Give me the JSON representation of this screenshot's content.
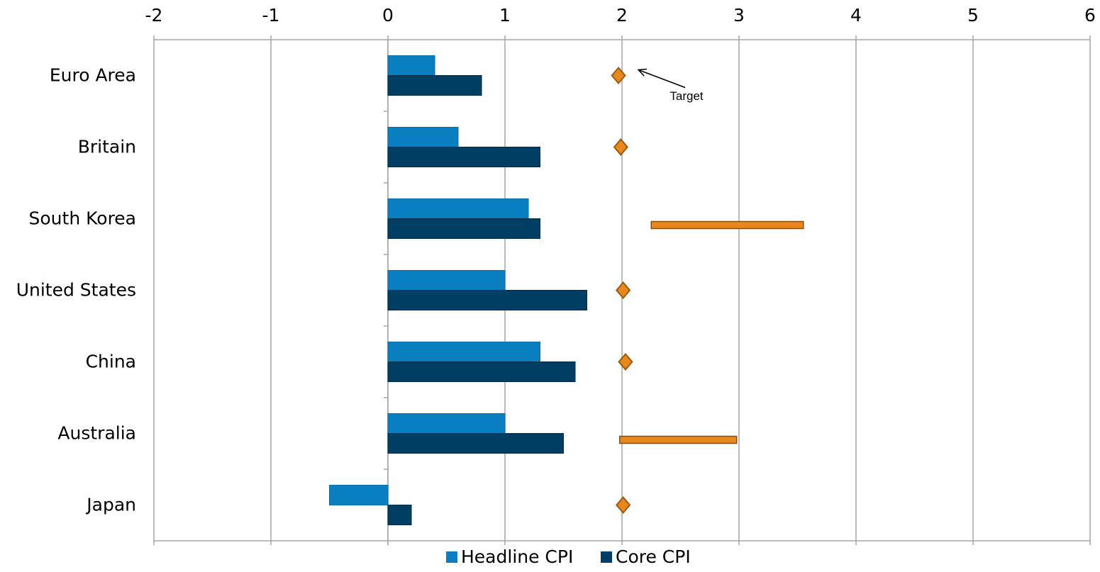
{
  "chart_data": {
    "type": "bar",
    "orientation": "horizontal",
    "categories": [
      "Euro Area",
      "Britain",
      "South Korea",
      "United States",
      "China",
      "Australia",
      "Japan"
    ],
    "series": [
      {
        "name": "Headline CPI",
        "color": "#0a7fc0",
        "values": [
          0.4,
          0.6,
          1.2,
          1.0,
          1.3,
          1.0,
          -0.5
        ]
      },
      {
        "name": "Core CPI",
        "color": "#003f63",
        "values": [
          0.8,
          1.3,
          1.3,
          1.7,
          1.6,
          1.5,
          0.2
        ]
      }
    ],
    "targets": {
      "color": "#e8871e",
      "points": [
        {
          "category": "Euro Area",
          "value": 1.97
        },
        {
          "category": "Britain",
          "value": 1.99
        },
        {
          "category": "United States",
          "value": 2.01
        },
        {
          "category": "China",
          "value": 2.03
        },
        {
          "category": "Japan",
          "value": 2.01
        }
      ],
      "ranges": [
        {
          "category": "South Korea",
          "from": 2.25,
          "to": 3.55
        },
        {
          "category": "Australia",
          "from": 1.98,
          "to": 2.98
        }
      ]
    },
    "annotation": {
      "text": "Target",
      "category": "Euro Area"
    },
    "xlim": [
      -2,
      6
    ],
    "x_ticks": [
      "-2",
      "-1",
      "0",
      "1",
      "2",
      "3",
      "4",
      "5",
      "6"
    ],
    "x_axis_position": "top",
    "grid": true,
    "legend_position": "bottom",
    "title": "",
    "xlabel": "",
    "ylabel": ""
  }
}
